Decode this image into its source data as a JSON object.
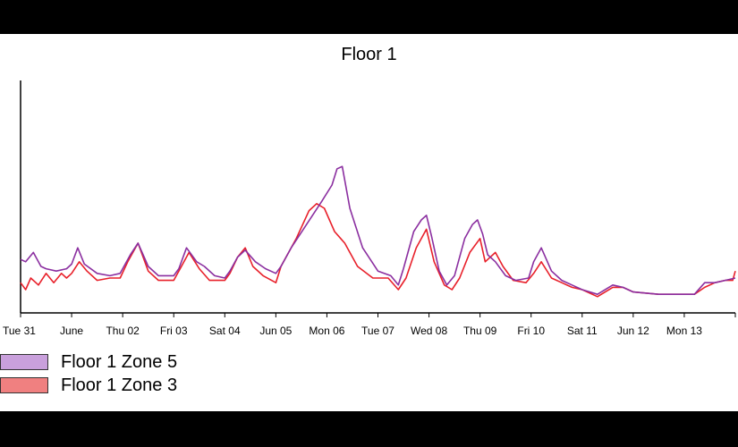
{
  "chart_data": {
    "type": "line",
    "title": "Floor 1",
    "x_tick_labels": [
      "Tue 31",
      "June",
      "Thu 02",
      "Fri 03",
      "Sat 04",
      "Jun 05",
      "Mon 06",
      "Tue 07",
      "Wed 08",
      "Thu 09",
      "Fri 10",
      "Sat 11",
      "Jun 12",
      "Mon 13"
    ],
    "x_range_days": [
      0,
      14
    ],
    "y_range": [
      0,
      100
    ],
    "y_axis_labels": "none",
    "grid": false,
    "legend_position": "bottom-left",
    "series": [
      {
        "name": "Floor 1 Zone 5",
        "color": "#8B2FA0",
        "swatch_color": "#C9A0DC",
        "points": [
          [
            0.0,
            23
          ],
          [
            0.1,
            22
          ],
          [
            0.25,
            26
          ],
          [
            0.4,
            20
          ],
          [
            0.5,
            19
          ],
          [
            0.7,
            18
          ],
          [
            0.9,
            19
          ],
          [
            1.0,
            21
          ],
          [
            1.12,
            28
          ],
          [
            1.25,
            21
          ],
          [
            1.5,
            17
          ],
          [
            1.75,
            16
          ],
          [
            1.95,
            17
          ],
          [
            2.15,
            25
          ],
          [
            2.3,
            30
          ],
          [
            2.5,
            20
          ],
          [
            2.7,
            16
          ],
          [
            3.0,
            16
          ],
          [
            3.1,
            19
          ],
          [
            3.25,
            28
          ],
          [
            3.45,
            22
          ],
          [
            3.6,
            20
          ],
          [
            3.8,
            16
          ],
          [
            4.0,
            15
          ],
          [
            4.1,
            18
          ],
          [
            4.25,
            24
          ],
          [
            4.4,
            27
          ],
          [
            4.6,
            22
          ],
          [
            4.8,
            19
          ],
          [
            5.0,
            17
          ],
          [
            5.1,
            20
          ],
          [
            5.3,
            28
          ],
          [
            5.6,
            38
          ],
          [
            5.9,
            48
          ],
          [
            6.1,
            55
          ],
          [
            6.2,
            62
          ],
          [
            6.3,
            63
          ],
          [
            6.45,
            45
          ],
          [
            6.7,
            28
          ],
          [
            7.0,
            18
          ],
          [
            7.25,
            16
          ],
          [
            7.4,
            12
          ],
          [
            7.5,
            19
          ],
          [
            7.7,
            35
          ],
          [
            7.85,
            40
          ],
          [
            7.95,
            42
          ],
          [
            8.05,
            33
          ],
          [
            8.2,
            18
          ],
          [
            8.35,
            12
          ],
          [
            8.5,
            16
          ],
          [
            8.7,
            32
          ],
          [
            8.85,
            38
          ],
          [
            8.95,
            40
          ],
          [
            9.05,
            34
          ],
          [
            9.15,
            25
          ],
          [
            9.3,
            22
          ],
          [
            9.5,
            16
          ],
          [
            9.7,
            14
          ],
          [
            9.95,
            15
          ],
          [
            10.05,
            22
          ],
          [
            10.2,
            28
          ],
          [
            10.4,
            18
          ],
          [
            10.6,
            14
          ],
          [
            10.8,
            12
          ],
          [
            11.0,
            10
          ],
          [
            11.3,
            8
          ],
          [
            11.6,
            12
          ],
          [
            11.8,
            11
          ],
          [
            12.0,
            9
          ],
          [
            12.5,
            8
          ],
          [
            13.0,
            8
          ],
          [
            13.2,
            8
          ],
          [
            13.4,
            13
          ],
          [
            13.6,
            13
          ],
          [
            13.8,
            14
          ],
          [
            14.0,
            15
          ]
        ]
      },
      {
        "name": "Floor 1 Zone 3",
        "color": "#E8202A",
        "swatch_color": "#F08080",
        "points": [
          [
            0.0,
            13
          ],
          [
            0.1,
            10
          ],
          [
            0.2,
            15
          ],
          [
            0.35,
            12
          ],
          [
            0.5,
            17
          ],
          [
            0.65,
            13
          ],
          [
            0.8,
            17
          ],
          [
            0.9,
            15
          ],
          [
            1.0,
            17
          ],
          [
            1.15,
            22
          ],
          [
            1.3,
            18
          ],
          [
            1.5,
            14
          ],
          [
            1.75,
            15
          ],
          [
            1.95,
            15
          ],
          [
            2.1,
            22
          ],
          [
            2.3,
            30
          ],
          [
            2.5,
            18
          ],
          [
            2.7,
            14
          ],
          [
            3.0,
            14
          ],
          [
            3.15,
            20
          ],
          [
            3.3,
            26
          ],
          [
            3.5,
            19
          ],
          [
            3.7,
            14
          ],
          [
            4.0,
            14
          ],
          [
            4.1,
            17
          ],
          [
            4.25,
            24
          ],
          [
            4.4,
            28
          ],
          [
            4.55,
            20
          ],
          [
            4.75,
            16
          ],
          [
            5.0,
            13
          ],
          [
            5.1,
            20
          ],
          [
            5.4,
            32
          ],
          [
            5.65,
            44
          ],
          [
            5.8,
            47
          ],
          [
            5.95,
            45
          ],
          [
            6.15,
            35
          ],
          [
            6.35,
            30
          ],
          [
            6.6,
            20
          ],
          [
            6.9,
            15
          ],
          [
            7.2,
            15
          ],
          [
            7.4,
            10
          ],
          [
            7.55,
            15
          ],
          [
            7.75,
            28
          ],
          [
            7.95,
            36
          ],
          [
            8.1,
            22
          ],
          [
            8.3,
            12
          ],
          [
            8.45,
            10
          ],
          [
            8.6,
            15
          ],
          [
            8.8,
            26
          ],
          [
            9.0,
            32
          ],
          [
            9.1,
            22
          ],
          [
            9.3,
            26
          ],
          [
            9.45,
            20
          ],
          [
            9.65,
            14
          ],
          [
            9.9,
            13
          ],
          [
            10.05,
            17
          ],
          [
            10.2,
            22
          ],
          [
            10.4,
            15
          ],
          [
            10.6,
            13
          ],
          [
            10.8,
            11
          ],
          [
            11.0,
            10
          ],
          [
            11.3,
            7
          ],
          [
            11.6,
            11
          ],
          [
            11.8,
            11
          ],
          [
            12.0,
            9
          ],
          [
            12.5,
            8
          ],
          [
            13.0,
            8
          ],
          [
            13.2,
            8
          ],
          [
            13.4,
            11
          ],
          [
            13.6,
            13
          ],
          [
            13.8,
            14
          ],
          [
            13.95,
            14
          ],
          [
            14.0,
            18
          ]
        ]
      }
    ]
  }
}
